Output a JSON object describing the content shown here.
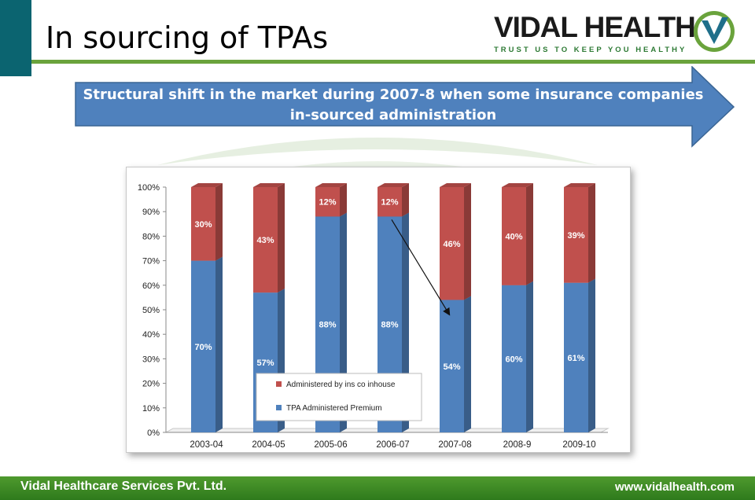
{
  "slide": {
    "title": "In sourcing of TPAs",
    "callout": "Structural shift in the market during 2007-8 when some insurance companies in-sourced administration"
  },
  "logo": {
    "name": "VIDAL HEALTH",
    "tagline": "TRUST US TO KEEP YOU HEALTHY"
  },
  "footer": {
    "company": "Vidal Healthcare Services Pvt. Ltd.",
    "website": "www.vidalhealth.com"
  },
  "colors": {
    "accent_teal": "#0b6470",
    "accent_green": "#6aa33c",
    "arrow_blue": "#4f81bd",
    "series_tpa": "#4f81bd",
    "series_inhouse": "#c0504d"
  },
  "chart_data": {
    "type": "bar",
    "stacked": true,
    "categories": [
      "2003-04",
      "2004-05",
      "2005-06",
      "2006-07",
      "2007-08",
      "2008-9",
      "2009-10"
    ],
    "series": [
      {
        "name": "TPA Administered Premium",
        "values": [
          70,
          57,
          88,
          88,
          54,
          60,
          61
        ],
        "labels": [
          "70%",
          "57%",
          "88%",
          "88%",
          "54%",
          "60%",
          "61%"
        ]
      },
      {
        "name": "Administered by ins co inhouse",
        "values": [
          30,
          43,
          12,
          12,
          46,
          40,
          39
        ],
        "labels": [
          "30%",
          "43%",
          "12%",
          "12%",
          "46%",
          "40%",
          "39%"
        ]
      }
    ],
    "y_ticks": [
      "0%",
      "10%",
      "20%",
      "30%",
      "40%",
      "50%",
      "60%",
      "70%",
      "80%",
      "90%",
      "100%"
    ],
    "ylim": [
      0,
      100
    ],
    "grid": false,
    "legend": "bottom-center",
    "annotation": "arrow from 2006-07 bar top down to 2007-08 bar"
  }
}
